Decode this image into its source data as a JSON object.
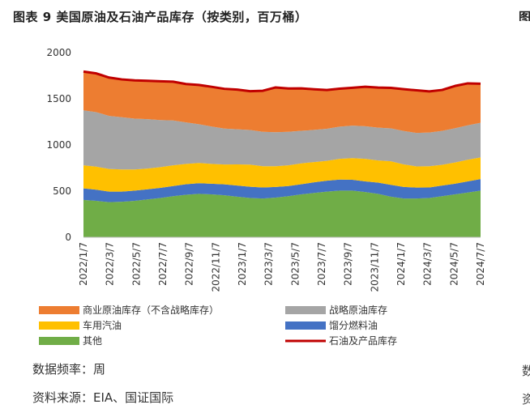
{
  "page": {
    "title": "图表 9 美国原油及石油产品库存（按类别，百万桶）",
    "footnote_frequency": "数据频率：周",
    "footnote_source": "资料来源：EIA、国证国际",
    "edge_fragment_top": "图",
    "edge_fragment_mid": "数",
    "edge_fragment_bottom": "资"
  },
  "chart_data": {
    "type": "area",
    "stacked": true,
    "title": "",
    "xlabel": "",
    "ylabel": "",
    "ylim": [
      0,
      2000
    ],
    "yticks": [
      0,
      500,
      1000,
      1500,
      2000
    ],
    "x_tick_labels": [
      "2022/1/7",
      "2022/3/7",
      "2022/5/7",
      "2022/7/7",
      "2022/9/7",
      "2022/11/7",
      "2023/1/7",
      "2023/3/7",
      "2023/5/7",
      "2023/7/7",
      "2023/9/7",
      "2023/11/7",
      "2024/1/7",
      "2024/3/7",
      "2024/5/7",
      "2024/7/7"
    ],
    "x": [
      "2022/1",
      "2022/2",
      "2022/3",
      "2022/4",
      "2022/5",
      "2022/6",
      "2022/7",
      "2022/8",
      "2022/9",
      "2022/10",
      "2022/11",
      "2022/12",
      "2023/1",
      "2023/2",
      "2023/3",
      "2023/4",
      "2023/5",
      "2023/6",
      "2023/7",
      "2023/8",
      "2023/9",
      "2023/10",
      "2023/11",
      "2023/12",
      "2024/1",
      "2024/2",
      "2024/3",
      "2024/4",
      "2024/5",
      "2024/6",
      "2024/7",
      "2024/8"
    ],
    "series": [
      {
        "name": "其他",
        "color": "#70AD47",
        "values": [
          405,
          395,
          380,
          385,
          395,
          410,
          425,
          445,
          460,
          470,
          465,
          455,
          440,
          425,
          420,
          430,
          445,
          465,
          480,
          495,
          505,
          505,
          490,
          470,
          440,
          420,
          420,
          425,
          445,
          465,
          485,
          505
        ]
      },
      {
        "name": "馏分燃料油",
        "color": "#4472C4",
        "values": [
          125,
          120,
          115,
          110,
          110,
          110,
          110,
          110,
          115,
          115,
          115,
          118,
          120,
          122,
          120,
          115,
          110,
          110,
          115,
          118,
          120,
          118,
          115,
          122,
          128,
          125,
          118,
          115,
          115,
          115,
          120,
          125
        ]
      },
      {
        "name": "车用汽油",
        "color": "#FFC000",
        "values": [
          250,
          250,
          245,
          240,
          230,
          225,
          225,
          225,
          220,
          220,
          215,
          215,
          230,
          240,
          230,
          225,
          225,
          225,
          220,
          215,
          225,
          235,
          245,
          240,
          255,
          245,
          230,
          230,
          225,
          230,
          235,
          235
        ]
      },
      {
        "name": "战略原油库存",
        "color": "#A5A5A5",
        "values": [
          595,
          590,
          575,
          565,
          550,
          535,
          510,
          485,
          450,
          420,
          405,
          390,
          380,
          375,
          372,
          368,
          362,
          353,
          348,
          347,
          348,
          351,
          353,
          355,
          357,
          361,
          363,
          365,
          367,
          371,
          373,
          375
        ]
      },
      {
        "name": "商业原油库存（不含战略库存）",
        "color": "#ED7D31",
        "values": [
          420,
          420,
          415,
          410,
          415,
          415,
          420,
          420,
          415,
          425,
          430,
          430,
          430,
          420,
          445,
          485,
          470,
          460,
          440,
          420,
          412,
          411,
          427,
          435,
          438,
          453,
          461,
          445,
          444,
          458,
          454,
          423
        ]
      }
    ],
    "total_line": {
      "name": "石油及产品库存",
      "color": "#C00000",
      "values": [
        1795,
        1775,
        1730,
        1710,
        1700,
        1695,
        1690,
        1685,
        1660,
        1650,
        1630,
        1608,
        1600,
        1582,
        1587,
        1623,
        1612,
        1613,
        1603,
        1595,
        1610,
        1620,
        1630,
        1622,
        1618,
        1604,
        1592,
        1580,
        1596,
        1639,
        1667,
        1663
      ]
    },
    "legend": [
      {
        "label": "商业原油库存（不含战略库存）",
        "kind": "area",
        "color": "#ED7D31"
      },
      {
        "label": "战略原油库存",
        "kind": "area",
        "color": "#A5A5A5"
      },
      {
        "label": "车用汽油",
        "kind": "area",
        "color": "#FFC000"
      },
      {
        "label": "馏分燃料油",
        "kind": "area",
        "color": "#4472C4"
      },
      {
        "label": "其他",
        "kind": "area",
        "color": "#70AD47"
      },
      {
        "label": "石油及产品库存",
        "kind": "line",
        "color": "#C00000"
      }
    ],
    "legend_position": "bottom",
    "grid": false
  }
}
